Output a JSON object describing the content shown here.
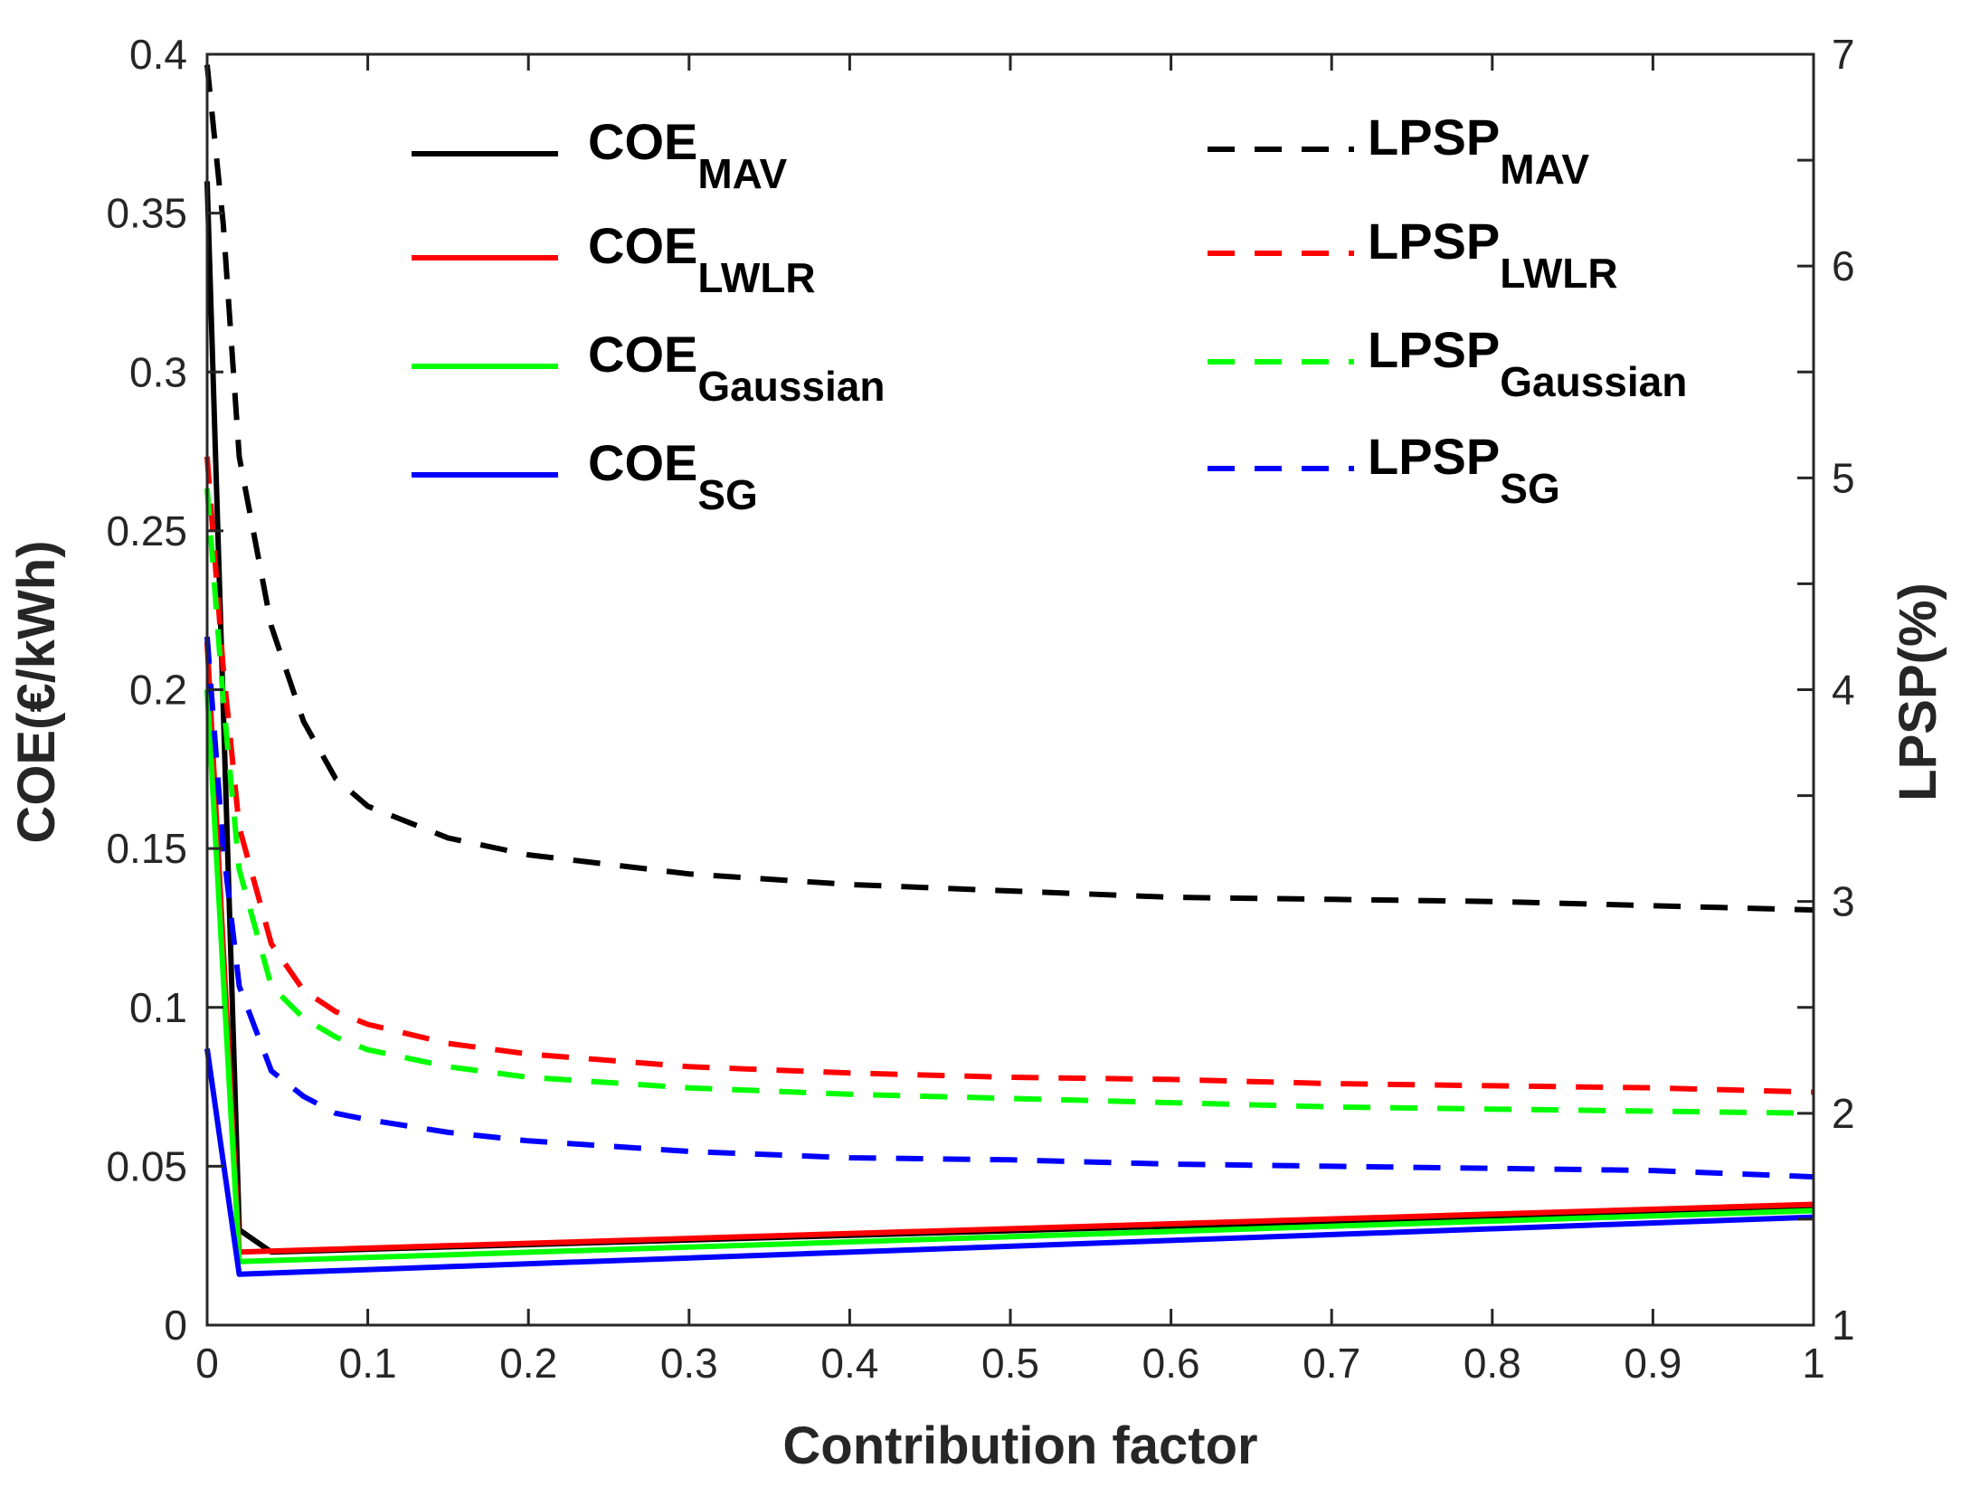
{
  "chart_data": {
    "type": "line",
    "title": "",
    "xlabel": "Contribution  factor",
    "ylabel_left": "COE(€/kWh)",
    "ylabel_right": "LPSP(%)",
    "xlim": [
      0,
      1
    ],
    "ylim_left": [
      0,
      0.4
    ],
    "ylim_right": [
      1,
      7
    ],
    "x_ticks": [
      "0",
      "0.1",
      "0.2",
      "0.3",
      "0.4",
      "0.5",
      "0.6",
      "0.7",
      "0.8",
      "0.9",
      "1"
    ],
    "y_left_ticks": [
      "0",
      "0.05",
      "0.1",
      "0.15",
      "0.2",
      "0.25",
      "0.3",
      "0.35",
      "0.4"
    ],
    "y_right_ticks": [
      "1",
      "2",
      "3",
      "4",
      "5",
      "6",
      "7"
    ],
    "grid": false,
    "legend_position": "top",
    "series": [
      {
        "key": "coe_mav",
        "axis": "left",
        "style": "solid",
        "color": "#000000",
        "legend_main": "COE",
        "legend_sub": "MAV",
        "x": [
          0,
          0.02,
          0.04,
          1
        ],
        "y": [
          0.36,
          0.03,
          0.023,
          0.037
        ]
      },
      {
        "key": "coe_lwlr",
        "axis": "left",
        "style": "solid",
        "color": "#ff0000",
        "legend_main": "COE",
        "legend_sub": "LWLR",
        "x": [
          0,
          0.02,
          1
        ],
        "y": [
          0.215,
          0.023,
          0.038
        ]
      },
      {
        "key": "coe_gaussian",
        "axis": "left",
        "style": "solid",
        "color": "#00ff00",
        "legend_main": "COE",
        "legend_sub": "Gaussian",
        "x": [
          0,
          0.02,
          1
        ],
        "y": [
          0.2,
          0.02,
          0.036
        ]
      },
      {
        "key": "coe_sg",
        "axis": "left",
        "style": "solid",
        "color": "#0000ff",
        "legend_main": "COE",
        "legend_sub": "SG",
        "x": [
          0,
          0.02,
          1
        ],
        "y": [
          0.087,
          0.016,
          0.034
        ]
      },
      {
        "key": "lpsp_mav",
        "axis": "right",
        "style": "dashed",
        "color": "#000000",
        "legend_main": "LPSP",
        "legend_sub": "MAV",
        "x": [
          0,
          0.01,
          0.02,
          0.04,
          0.06,
          0.08,
          0.1,
          0.15,
          0.2,
          0.3,
          0.4,
          0.5,
          0.6,
          0.7,
          0.8,
          0.9,
          1
        ],
        "y": [
          6.95,
          6.2,
          5.1,
          4.3,
          3.85,
          3.58,
          3.45,
          3.3,
          3.22,
          3.13,
          3.08,
          3.05,
          3.02,
          3.01,
          3.0,
          2.98,
          2.96
        ]
      },
      {
        "key": "lpsp_lwlr",
        "axis": "right",
        "style": "dashed",
        "color": "#ff0000",
        "legend_main": "LPSP",
        "legend_sub": "LWLR",
        "x": [
          0,
          0.01,
          0.02,
          0.04,
          0.06,
          0.08,
          0.1,
          0.15,
          0.2,
          0.3,
          0.4,
          0.5,
          0.6,
          0.7,
          0.8,
          0.9,
          1
        ],
        "y": [
          5.1,
          4.1,
          3.35,
          2.8,
          2.58,
          2.48,
          2.42,
          2.33,
          2.28,
          2.22,
          2.19,
          2.17,
          2.16,
          2.14,
          2.13,
          2.12,
          2.1
        ]
      },
      {
        "key": "lpsp_gaussian",
        "axis": "right",
        "style": "dashed",
        "color": "#00ff00",
        "legend_main": "LPSP",
        "legend_sub": "Gaussian",
        "x": [
          0,
          0.01,
          0.02,
          0.04,
          0.06,
          0.08,
          0.1,
          0.15,
          0.2,
          0.3,
          0.4,
          0.5,
          0.6,
          0.7,
          0.8,
          0.9,
          1
        ],
        "y": [
          4.95,
          3.95,
          3.15,
          2.6,
          2.45,
          2.36,
          2.3,
          2.22,
          2.17,
          2.12,
          2.09,
          2.07,
          2.05,
          2.03,
          2.02,
          2.01,
          2.0
        ]
      },
      {
        "key": "lpsp_sg",
        "axis": "right",
        "style": "dashed",
        "color": "#0000ff",
        "legend_main": "LPSP",
        "legend_sub": "SG",
        "x": [
          0,
          0.01,
          0.02,
          0.04,
          0.06,
          0.08,
          0.1,
          0.15,
          0.2,
          0.3,
          0.4,
          0.5,
          0.6,
          0.7,
          0.8,
          0.9,
          1
        ],
        "y": [
          4.25,
          3.25,
          2.6,
          2.2,
          2.08,
          2.0,
          1.97,
          1.91,
          1.87,
          1.82,
          1.79,
          1.78,
          1.76,
          1.75,
          1.74,
          1.73,
          1.7
        ]
      }
    ]
  }
}
